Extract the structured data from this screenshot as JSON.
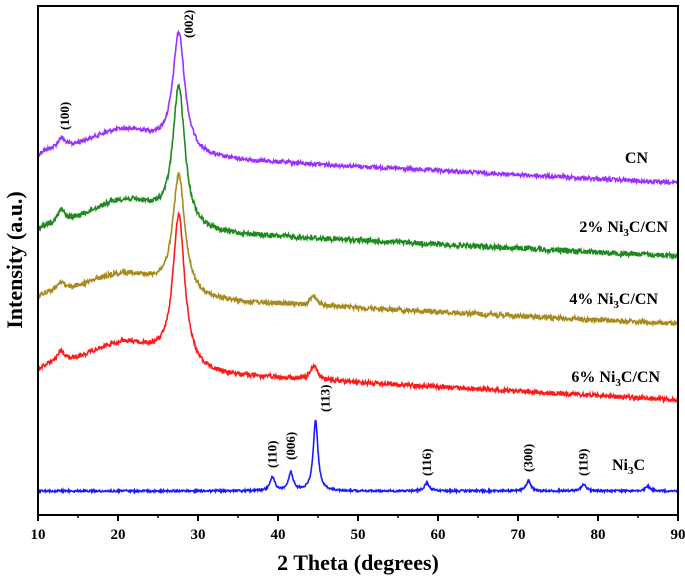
{
  "chart_data": {
    "type": "line",
    "title": "",
    "xlabel": "2 Theta (degrees)",
    "ylabel": "Intensity (a.u.)",
    "xlim": [
      10,
      90
    ],
    "xticks": [
      10,
      20,
      30,
      40,
      50,
      60,
      70,
      80,
      90
    ],
    "y_ticks_shown": false,
    "grid": false,
    "legend": "inline labels at right end of each curve",
    "series": [
      {
        "name": "CN",
        "label_text": "CN",
        "color": "#9b30ff",
        "peaks": [
          {
            "x": 12.9,
            "label": "(100)"
          },
          {
            "x": 27.6,
            "label": "(002)"
          }
        ]
      },
      {
        "name": "2% Ni3C/CN",
        "label_text": "2% Ni",
        "label_sub": "3",
        "label_suffix": "C/CN",
        "color": "#1f8a1f",
        "peaks": [
          {
            "x": 12.9
          },
          {
            "x": 27.6
          }
        ]
      },
      {
        "name": "4% Ni3C/CN",
        "label_text": "4% Ni",
        "label_sub": "3",
        "label_suffix": "C/CN",
        "color": "#a88a1f",
        "peaks": [
          {
            "x": 12.9
          },
          {
            "x": 27.6
          },
          {
            "x": 44.5
          }
        ]
      },
      {
        "name": "6% Ni3C/CN",
        "label_text": "6% Ni",
        "label_sub": "3",
        "label_suffix": "C/CN",
        "color": "#ff1a1a",
        "peaks": [
          {
            "x": 12.9
          },
          {
            "x": 27.6
          },
          {
            "x": 44.5
          }
        ]
      },
      {
        "name": "Ni3C",
        "label_text": "Ni",
        "label_sub": "3",
        "label_suffix": "C",
        "color": "#1a1aff",
        "peaks": [
          {
            "x": 39.3,
            "label": "(110)"
          },
          {
            "x": 41.6,
            "label": "(006)"
          },
          {
            "x": 44.7,
            "label": "(113)"
          },
          {
            "x": 58.6,
            "label": "(116)"
          },
          {
            "x": 71.3,
            "label": "(300)"
          },
          {
            "x": 78.2,
            "label": "(119)"
          },
          {
            "x": 86.2
          }
        ]
      }
    ]
  }
}
